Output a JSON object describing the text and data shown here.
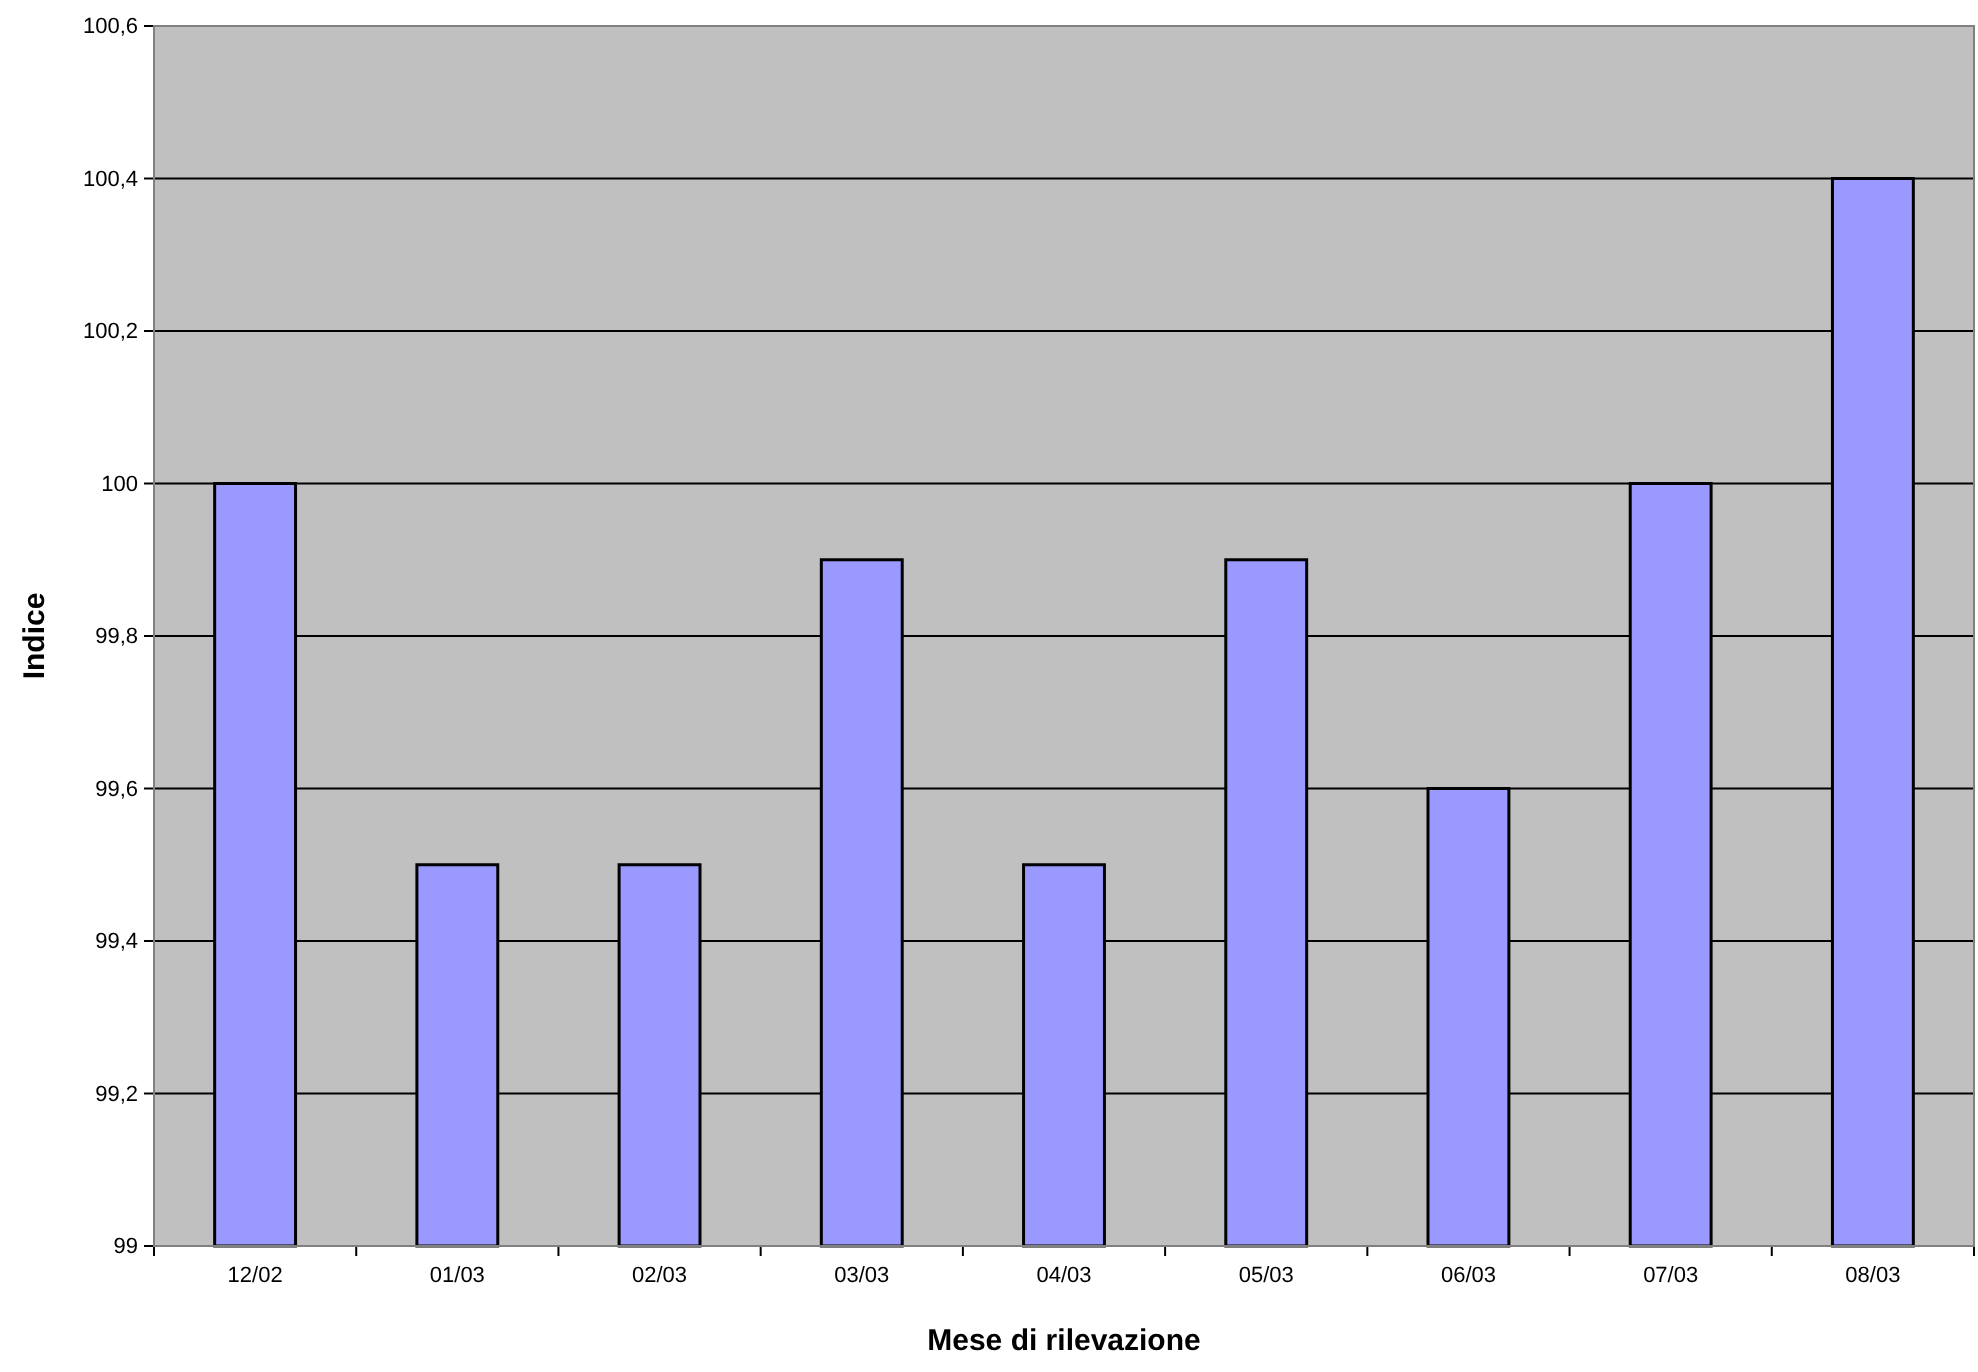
{
  "chart_data": {
    "type": "bar",
    "xlabel": "Mese di rilevazione",
    "ylabel": "Indice",
    "categories": [
      "12/02",
      "01/03",
      "02/03",
      "03/03",
      "04/03",
      "05/03",
      "06/03",
      "07/03",
      "08/03"
    ],
    "values": [
      100,
      99.5,
      99.5,
      99.9,
      99.5,
      99.9,
      99.6,
      100,
      100.4
    ],
    "color": "#9999ff",
    "ylim": [
      99,
      100.6
    ],
    "yticks": [
      99,
      {
        "value": 99.2,
        "label": "99,2"
      },
      {
        "value": 99.4,
        "label": "99,4"
      },
      {
        "value": 99.6,
        "label": "99,6"
      },
      {
        "value": 99.8,
        "label": "99,8"
      },
      100,
      {
        "value": 100.2,
        "label": "100,2"
      },
      {
        "value": 100.4,
        "label": "100,4"
      },
      {
        "value": 100.6,
        "label": "100,6"
      }
    ],
    "grid": "y"
  }
}
